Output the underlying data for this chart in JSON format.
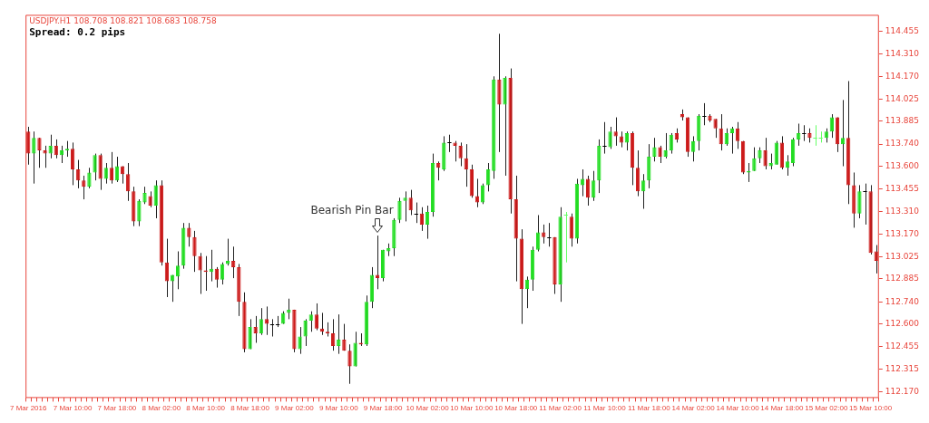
{
  "chart_data": {
    "type": "candlestick",
    "title": "USDJPY.H1 108.708 108.821 108.683 108.758",
    "subtitle": "Spread: 0.2 pips",
    "annotations": [
      "Bearish Pin Bar"
    ],
    "categories": [
      "7 Mar 2016",
      null,
      null,
      null,
      null,
      null,
      null,
      null,
      "7 Mar 10:00",
      null,
      null,
      null,
      null,
      null,
      null,
      null,
      "7 Mar 18:00",
      null,
      null,
      null,
      null,
      null,
      null,
      null,
      "8 Mar 02:00",
      null,
      null,
      null,
      null,
      null,
      null,
      null,
      "8 Mar 10:00",
      null,
      null,
      null,
      null,
      null,
      null,
      null,
      "8 Mar 18:00",
      null,
      null,
      null,
      null,
      null,
      null,
      null,
      "9 Mar 02:00",
      null,
      null,
      null,
      null,
      null,
      null,
      null,
      "9 Mar 10:00",
      null,
      null,
      null,
      null,
      null,
      null,
      null,
      "9 Mar 18:00",
      null,
      null,
      null,
      null,
      null,
      null,
      null,
      "10 Mar 02:00",
      null,
      null,
      null,
      null,
      null,
      null,
      null,
      "10 Mar 10:00",
      null,
      null,
      null,
      null,
      null,
      null,
      null,
      "10 Mar 18:00",
      null,
      null,
      null,
      null,
      null,
      null,
      null,
      "11 Mar 02:00",
      null,
      null,
      null,
      null,
      null,
      null,
      null,
      "11 Mar 10:00",
      null,
      null,
      null,
      null,
      null,
      null,
      null,
      "11 Mar 18:00",
      null,
      null,
      null,
      null,
      null,
      null,
      null,
      "14 Mar 02:00",
      null,
      null,
      null,
      null,
      null,
      null,
      null,
      "14 Mar 10:00",
      null,
      null,
      null,
      null,
      null,
      null,
      null,
      "14 Mar 18:00",
      null,
      null,
      null,
      null,
      null,
      null,
      null,
      "15 Mar 02:00",
      null,
      null,
      null,
      null,
      null,
      null,
      null,
      "15 Mar 10:00",
      null
    ],
    "ohlc": [
      [
        113.82,
        113.85,
        113.61,
        113.68
      ],
      [
        113.68,
        113.82,
        113.49,
        113.78
      ],
      [
        113.78,
        113.78,
        113.59,
        113.7
      ],
      [
        113.7,
        113.73,
        113.59,
        113.68
      ],
      [
        113.68,
        113.8,
        113.65,
        113.73
      ],
      [
        113.73,
        113.77,
        113.65,
        113.67
      ],
      [
        113.67,
        113.73,
        113.62,
        113.7
      ],
      [
        113.7,
        113.76,
        113.66,
        113.71
      ],
      [
        113.71,
        113.75,
        113.48,
        113.58
      ],
      [
        113.58,
        113.64,
        113.46,
        113.51
      ],
      [
        113.51,
        113.54,
        113.39,
        113.47
      ],
      [
        113.47,
        113.59,
        113.46,
        113.56
      ],
      [
        113.56,
        113.68,
        113.51,
        113.67
      ],
      [
        113.67,
        113.68,
        113.45,
        113.52
      ],
      [
        113.52,
        113.62,
        113.49,
        113.59
      ],
      [
        113.59,
        113.69,
        113.49,
        113.51
      ],
      [
        113.51,
        113.66,
        113.5,
        113.6
      ],
      [
        113.6,
        113.6,
        113.49,
        113.55
      ],
      [
        113.55,
        113.62,
        113.38,
        113.44
      ],
      [
        113.44,
        113.47,
        113.22,
        113.25
      ],
      [
        113.25,
        113.39,
        113.22,
        113.38
      ],
      [
        113.37,
        113.47,
        113.36,
        113.43
      ],
      [
        113.41,
        113.44,
        113.34,
        113.35
      ],
      [
        113.35,
        113.51,
        113.27,
        113.48
      ],
      [
        113.48,
        113.51,
        112.97,
        112.99
      ],
      [
        112.99,
        113.14,
        112.77,
        112.87
      ],
      [
        112.87,
        112.91,
        112.74,
        112.91
      ],
      [
        112.9,
        113.06,
        112.82,
        112.97
      ],
      [
        112.97,
        113.24,
        112.95,
        113.21
      ],
      [
        113.21,
        113.24,
        113.09,
        113.15
      ],
      [
        113.15,
        113.19,
        112.93,
        113.03
      ],
      [
        113.03,
        113.05,
        112.79,
        112.94
      ],
      [
        112.94,
        113.03,
        112.81,
        112.93
      ],
      [
        112.93,
        113.07,
        112.87,
        112.95
      ],
      [
        112.95,
        112.96,
        112.83,
        112.88
      ],
      [
        112.88,
        112.99,
        112.85,
        112.98
      ],
      [
        112.98,
        113.14,
        112.97,
        113.0
      ],
      [
        113.0,
        113.09,
        112.89,
        112.96
      ],
      [
        112.96,
        112.98,
        112.65,
        112.74
      ],
      [
        112.74,
        112.8,
        112.42,
        112.44
      ],
      [
        112.44,
        112.63,
        112.44,
        112.58
      ],
      [
        112.58,
        112.65,
        112.48,
        112.54
      ],
      [
        112.54,
        112.7,
        112.53,
        112.63
      ],
      [
        112.63,
        112.71,
        112.53,
        112.6
      ],
      [
        112.6,
        112.63,
        112.52,
        112.6
      ],
      [
        112.6,
        112.65,
        112.58,
        112.6
      ],
      [
        112.6,
        112.68,
        112.6,
        112.67
      ],
      [
        112.67,
        112.76,
        112.63,
        112.69
      ],
      [
        112.69,
        112.69,
        112.42,
        112.44
      ],
      [
        112.44,
        112.58,
        112.41,
        112.52
      ],
      [
        112.52,
        112.63,
        112.46,
        112.62
      ],
      [
        112.62,
        112.68,
        112.55,
        112.66
      ],
      [
        112.66,
        112.73,
        112.56,
        112.57
      ],
      [
        112.57,
        112.67,
        112.53,
        112.55
      ],
      [
        112.55,
        112.61,
        112.52,
        112.54
      ],
      [
        112.54,
        112.63,
        112.43,
        112.46
      ],
      [
        112.46,
        112.66,
        112.41,
        112.5
      ],
      [
        112.5,
        112.6,
        112.43,
        112.43
      ],
      [
        112.43,
        112.47,
        112.22,
        112.33
      ],
      [
        112.33,
        112.55,
        112.33,
        112.48
      ],
      [
        112.48,
        112.54,
        112.46,
        112.47
      ],
      [
        112.47,
        112.78,
        112.46,
        112.74
      ],
      [
        112.74,
        112.96,
        112.7,
        112.91
      ],
      [
        112.91,
        113.16,
        112.82,
        112.89
      ],
      [
        112.89,
        113.07,
        112.87,
        113.07
      ],
      [
        113.06,
        113.11,
        113.03,
        113.08
      ],
      [
        113.08,
        113.27,
        113.03,
        113.26
      ],
      [
        113.26,
        113.4,
        113.24,
        113.38
      ],
      [
        113.38,
        113.44,
        113.25,
        113.4
      ],
      [
        113.4,
        113.45,
        113.29,
        113.32
      ],
      [
        113.3,
        113.37,
        113.24,
        113.3
      ],
      [
        113.3,
        113.34,
        113.19,
        113.23
      ],
      [
        113.23,
        113.35,
        113.14,
        113.31
      ],
      [
        113.31,
        113.68,
        113.28,
        113.62
      ],
      [
        113.62,
        113.63,
        113.51,
        113.59
      ],
      [
        113.58,
        113.79,
        113.57,
        113.75
      ],
      [
        113.75,
        113.8,
        113.69,
        113.75
      ],
      [
        113.75,
        113.76,
        113.63,
        113.73
      ],
      [
        113.73,
        113.75,
        113.6,
        113.65
      ],
      [
        113.65,
        113.74,
        113.47,
        113.58
      ],
      [
        113.58,
        113.61,
        113.4,
        113.41
      ],
      [
        113.41,
        113.52,
        113.34,
        113.37
      ],
      [
        113.37,
        113.49,
        113.36,
        113.48
      ],
      [
        113.48,
        113.62,
        113.44,
        113.58
      ],
      [
        113.57,
        114.17,
        113.52,
        114.15
      ],
      [
        114.15,
        114.44,
        113.69,
        113.99
      ],
      [
        113.99,
        114.17,
        113.54,
        114.16
      ],
      [
        114.16,
        114.22,
        113.3,
        113.39
      ],
      [
        113.39,
        113.54,
        112.87,
        113.14
      ],
      [
        113.14,
        113.2,
        112.6,
        112.82
      ],
      [
        112.82,
        112.9,
        112.7,
        112.88
      ],
      [
        112.88,
        113.09,
        112.81,
        113.07
      ],
      [
        113.07,
        113.29,
        113.06,
        113.18
      ],
      [
        113.18,
        113.23,
        113.11,
        113.15
      ],
      [
        113.15,
        113.24,
        113.09,
        113.15
      ],
      [
        113.15,
        113.15,
        112.79,
        112.85
      ],
      [
        112.85,
        113.34,
        112.74,
        113.28
      ],
      [
        113.29,
        113.31,
        112.99,
        113.29
      ],
      [
        113.28,
        113.3,
        113.09,
        113.14
      ],
      [
        113.14,
        113.52,
        113.11,
        113.49
      ],
      [
        113.48,
        113.58,
        113.41,
        113.52
      ],
      [
        113.52,
        113.54,
        113.35,
        113.4
      ],
      [
        113.4,
        113.57,
        113.38,
        113.51
      ],
      [
        113.51,
        113.77,
        113.43,
        113.73
      ],
      [
        113.73,
        113.88,
        113.68,
        113.73
      ],
      [
        113.72,
        113.85,
        113.71,
        113.82
      ],
      [
        113.82,
        113.91,
        113.73,
        113.79
      ],
      [
        113.79,
        113.82,
        113.72,
        113.75
      ],
      [
        113.75,
        113.82,
        113.7,
        113.81
      ],
      [
        113.81,
        113.82,
        113.48,
        113.59
      ],
      [
        113.59,
        113.7,
        113.41,
        113.44
      ],
      [
        113.44,
        113.55,
        113.33,
        113.51
      ],
      [
        113.51,
        113.74,
        113.46,
        113.66
      ],
      [
        113.66,
        113.78,
        113.63,
        113.72
      ],
      [
        113.72,
        113.73,
        113.62,
        113.66
      ],
      [
        113.66,
        113.81,
        113.65,
        113.7
      ],
      [
        113.7,
        113.81,
        113.68,
        113.8
      ],
      [
        113.81,
        113.84,
        113.75,
        113.77
      ],
      [
        113.93,
        113.96,
        113.89,
        113.91
      ],
      [
        113.91,
        113.91,
        113.66,
        113.69
      ],
      [
        113.69,
        113.79,
        113.63,
        113.76
      ],
      [
        113.76,
        113.93,
        113.7,
        113.92
      ],
      [
        113.92,
        114.0,
        113.86,
        113.92
      ],
      [
        113.92,
        113.93,
        113.88,
        113.89
      ],
      [
        113.9,
        113.9,
        113.78,
        113.84
      ],
      [
        113.84,
        113.93,
        113.7,
        113.74
      ],
      [
        113.74,
        113.84,
        113.73,
        113.81
      ],
      [
        113.81,
        113.85,
        113.68,
        113.84
      ],
      [
        113.84,
        113.88,
        113.71,
        113.76
      ],
      [
        113.76,
        113.76,
        113.55,
        113.56
      ],
      [
        113.56,
        113.62,
        113.5,
        113.57
      ],
      [
        113.57,
        113.72,
        113.57,
        113.65
      ],
      [
        113.65,
        113.72,
        113.62,
        113.7
      ],
      [
        113.7,
        113.78,
        113.58,
        113.6
      ],
      [
        113.6,
        113.68,
        113.58,
        113.62
      ],
      [
        113.61,
        113.76,
        113.61,
        113.75
      ],
      [
        113.75,
        113.79,
        113.58,
        113.59
      ],
      [
        113.59,
        113.67,
        113.54,
        113.63
      ],
      [
        113.62,
        113.78,
        113.6,
        113.77
      ],
      [
        113.77,
        113.87,
        113.73,
        113.81
      ],
      [
        113.81,
        113.86,
        113.76,
        113.81
      ],
      [
        113.81,
        113.84,
        113.75,
        113.78
      ],
      [
        113.78,
        113.86,
        113.73,
        113.78
      ],
      [
        113.78,
        113.82,
        113.75,
        113.78
      ],
      [
        113.78,
        113.84,
        113.75,
        113.82
      ],
      [
        113.82,
        113.93,
        113.78,
        113.91
      ],
      [
        113.91,
        113.91,
        113.69,
        113.74
      ],
      [
        113.74,
        114.02,
        113.6,
        113.78
      ],
      [
        113.78,
        114.14,
        113.36,
        113.48
      ],
      [
        113.48,
        113.56,
        113.21,
        113.3
      ],
      [
        113.3,
        113.48,
        113.27,
        113.44
      ],
      [
        113.44,
        113.49,
        113.23,
        113.44
      ],
      [
        113.44,
        113.48,
        113.04,
        113.05
      ],
      [
        113.06,
        113.1,
        112.92,
        113.0
      ]
    ],
    "colors": [
      "#cc1a1a",
      "#22dd22",
      "#cc1a1a",
      "#cc1a1a",
      "#22dd22",
      "#cc1a1a",
      "#22dd22",
      "#22dd22",
      "#cc1a1a",
      "#cc1a1a",
      "#cc1a1a",
      "#22dd22",
      "#22dd22",
      "#cc1a1a",
      "#22dd22",
      "#cc1a1a",
      "#22dd22",
      "#cc1a1a",
      "#cc1a1a",
      "#cc1a1a",
      "#22dd22",
      "#22dd22",
      "#cc1a1a",
      "#22dd22",
      "#cc1a1a",
      "#cc1a1a",
      "#22dd22",
      "#22dd22",
      "#22dd22",
      "#cc1a1a",
      "#cc1a1a",
      "#cc1a1a",
      "#cc1a1a",
      "#22dd22",
      "#cc1a1a",
      "#22dd22",
      "#22dd22",
      "#cc1a1a",
      "#cc1a1a",
      "#cc1a1a",
      "#22dd22",
      "#cc1a1a",
      "#22dd22",
      "#cc1a1a",
      "#000000",
      "#000000",
      "#22dd22",
      "#22dd22",
      "#cc1a1a",
      "#22dd22",
      "#22dd22",
      "#22dd22",
      "#cc1a1a",
      "#cc1a1a",
      "#cc1a1a",
      "#cc1a1a",
      "#22dd22",
      "#cc1a1a",
      "#cc1a1a",
      "#22dd22",
      "#cc1a1a",
      "#22dd22",
      "#22dd22",
      "#cc1a1a",
      "#22dd22",
      "#22dd22",
      "#22dd22",
      "#22dd22",
      "#22dd22",
      "#cc1a1a",
      "#000000",
      "#cc1a1a",
      "#22dd22",
      "#22dd22",
      "#cc1a1a",
      "#22dd22",
      "#000000",
      "#cc1a1a",
      "#cc1a1a",
      "#cc1a1a",
      "#cc1a1a",
      "#cc1a1a",
      "#22dd22",
      "#22dd22",
      "#22dd22",
      "#cc1a1a",
      "#22dd22",
      "#cc1a1a",
      "#cc1a1a",
      "#cc1a1a",
      "#22dd22",
      "#22dd22",
      "#22dd22",
      "#cc1a1a",
      "#000000",
      "#cc1a1a",
      "#22dd22",
      "#66ff66",
      "#cc1a1a",
      "#22dd22",
      "#22dd22",
      "#cc1a1a",
      "#22dd22",
      "#22dd22",
      "#000000",
      "#22dd22",
      "#cc1a1a",
      "#cc1a1a",
      "#22dd22",
      "#cc1a1a",
      "#cc1a1a",
      "#22dd22",
      "#22dd22",
      "#22dd22",
      "#cc1a1a",
      "#22dd22",
      "#22dd22",
      "#cc1a1a",
      "#cc1a1a",
      "#cc1a1a",
      "#22dd22",
      "#22dd22",
      "#000000",
      "#cc1a1a",
      "#cc1a1a",
      "#cc1a1a",
      "#22dd22",
      "#22dd22",
      "#cc1a1a",
      "#cc1a1a",
      "#22dd22",
      "#22dd22",
      "#22dd22",
      "#cc1a1a",
      "#22dd22",
      "#22dd22",
      "#cc1a1a",
      "#22dd22",
      "#22dd22",
      "#22dd22",
      "#000000",
      "#cc1a1a",
      "#66ff66",
      "#66ff66",
      "#22dd22",
      "#22dd22",
      "#cc1a1a",
      "#22dd22",
      "#cc1a1a",
      "#cc1a1a",
      "#22dd22",
      "#000000",
      "#cc1a1a",
      "#cc1a1a"
    ],
    "ylim": [
      112.13,
      114.56
    ],
    "yticks": [
      114.455,
      {
        "value": 114.31,
        "label": "114.310"
      },
      {
        "value": 114.17,
        "label": "114.170"
      },
      114.025,
      113.885,
      {
        "value": 113.74,
        "label": "113.740"
      },
      {
        "value": 113.6,
        "label": "113.600"
      },
      113.455,
      {
        "value": 113.31,
        "label": "113.310"
      },
      {
        "value": 113.17,
        "label": "113.170"
      },
      113.025,
      112.885,
      {
        "value": 112.74,
        "label": "112.740"
      },
      {
        "value": 112.6,
        "label": "112.600"
      },
      112.455,
      112.315,
      {
        "value": 112.17,
        "label": "112.170"
      }
    ]
  }
}
